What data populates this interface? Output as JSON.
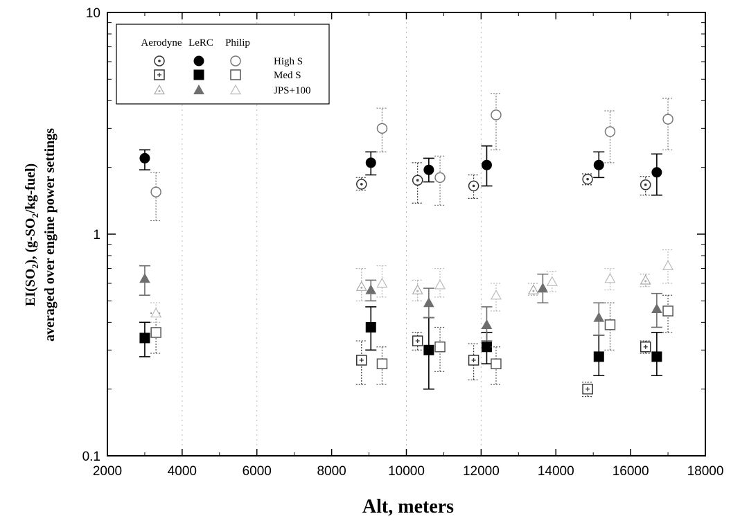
{
  "chart_data": {
    "type": "scatter",
    "title": "",
    "xlabel": "Alt, meters",
    "ylabel_line1": "EI(SO",
    "ylabel_sub": "2",
    "ylabel_mid": "), (g-SO",
    "ylabel_sub2": "2",
    "ylabel_end": "/kg-fuel)",
    "ylabel_line2": "averaged over engine power settings",
    "xlim": [
      2000,
      18000
    ],
    "ylim": [
      0.1,
      10
    ],
    "yscale": "log",
    "x_ticks": [
      "2000",
      "4000",
      "6000",
      "8000",
      "10000",
      "12000",
      "14000",
      "16000",
      "18000"
    ],
    "y_ticks": [
      "0.1",
      "1",
      "10"
    ],
    "legend": {
      "position": "top-left",
      "columns": [
        "Aerodyne",
        "LeRC",
        "Philip"
      ],
      "rows": [
        "High S",
        "Med S",
        "JPS+100"
      ]
    },
    "series": [
      {
        "group": "Aerodyne",
        "fuel": "High S",
        "marker": "circle-dot",
        "color": "#333333",
        "points": [
          [
            8800,
            1.68,
            1.58,
            1.8
          ],
          [
            10300,
            1.75,
            1.38,
            2.1
          ],
          [
            11800,
            1.65,
            1.45,
            1.85
          ],
          [
            14850,
            1.77,
            1.67,
            1.87
          ],
          [
            16400,
            1.67,
            1.5,
            1.82
          ]
        ]
      },
      {
        "group": "LeRC",
        "fuel": "High S",
        "marker": "circle-filled",
        "color": "#000000",
        "points": [
          [
            3000,
            2.2,
            1.95,
            2.4
          ],
          [
            9050,
            2.1,
            1.85,
            2.35
          ],
          [
            10600,
            1.95,
            1.72,
            2.2
          ],
          [
            12150,
            2.05,
            1.65,
            2.5
          ],
          [
            15150,
            2.05,
            1.8,
            2.35
          ],
          [
            16700,
            1.9,
            1.5,
            2.3
          ]
        ]
      },
      {
        "group": "Philip",
        "fuel": "High S",
        "marker": "circle-open",
        "color": "#777777",
        "points": [
          [
            3300,
            1.55,
            1.15,
            1.9
          ],
          [
            9350,
            3.0,
            2.35,
            3.7
          ],
          [
            10900,
            1.8,
            1.35,
            2.25
          ],
          [
            12400,
            3.45,
            2.4,
            4.3
          ],
          [
            15450,
            2.9,
            2.1,
            3.6
          ],
          [
            17000,
            3.3,
            2.4,
            4.1
          ]
        ]
      },
      {
        "group": "Aerodyne",
        "fuel": "Med S",
        "marker": "square-plus",
        "color": "#333333",
        "points": [
          [
            8800,
            0.27,
            0.21,
            0.33
          ],
          [
            10300,
            0.33,
            0.3,
            0.36
          ],
          [
            11800,
            0.27,
            0.22,
            0.32
          ],
          [
            14850,
            0.2,
            0.185,
            0.215
          ],
          [
            16400,
            0.31,
            0.29,
            0.33
          ]
        ]
      },
      {
        "group": "LeRC",
        "fuel": "Med S",
        "marker": "square-filled",
        "color": "#000000",
        "points": [
          [
            3000,
            0.34,
            0.28,
            0.4
          ],
          [
            9050,
            0.38,
            0.3,
            0.47
          ],
          [
            10600,
            0.3,
            0.2,
            0.42
          ],
          [
            12150,
            0.31,
            0.26,
            0.36
          ],
          [
            15150,
            0.28,
            0.23,
            0.35
          ],
          [
            16700,
            0.28,
            0.23,
            0.36
          ]
        ]
      },
      {
        "group": "Philip",
        "fuel": "Med S",
        "marker": "square-open",
        "color": "#555555",
        "points": [
          [
            3300,
            0.36,
            0.29,
            0.44
          ],
          [
            9350,
            0.26,
            0.21,
            0.31
          ],
          [
            10900,
            0.31,
            0.24,
            0.38
          ],
          [
            12400,
            0.26,
            0.21,
            0.31
          ],
          [
            15450,
            0.39,
            0.3,
            0.49
          ],
          [
            17000,
            0.45,
            0.36,
            0.53
          ]
        ]
      },
      {
        "group": "Aerodyne",
        "fuel": "JPS+100",
        "marker": "triangle-dot",
        "color": "#aaaaaa",
        "points": [
          [
            8800,
            0.58,
            0.5,
            0.7
          ],
          [
            10300,
            0.56,
            0.5,
            0.62
          ],
          [
            13400,
            0.56,
            0.53,
            0.6
          ],
          [
            16400,
            0.62,
            0.58,
            0.66
          ]
        ]
      },
      {
        "group": "LeRC",
        "fuel": "JPS+100",
        "marker": "triangle-filled",
        "color": "#6e6e6e",
        "points": [
          [
            3000,
            0.63,
            0.53,
            0.72
          ],
          [
            9050,
            0.56,
            0.5,
            0.62
          ],
          [
            10600,
            0.49,
            0.42,
            0.57
          ],
          [
            12150,
            0.39,
            0.33,
            0.47
          ],
          [
            13650,
            0.57,
            0.49,
            0.66
          ],
          [
            15150,
            0.42,
            0.35,
            0.49
          ],
          [
            16700,
            0.46,
            0.38,
            0.54
          ]
        ]
      },
      {
        "group": "Philip",
        "fuel": "JPS+100",
        "marker": "triangle-open",
        "color": "#bbbbbb",
        "points": [
          [
            3300,
            0.44,
            0.4,
            0.49
          ],
          [
            9350,
            0.6,
            0.52,
            0.72
          ],
          [
            10900,
            0.59,
            0.52,
            0.7
          ],
          [
            12400,
            0.53,
            0.45,
            0.6
          ],
          [
            13900,
            0.61,
            0.55,
            0.68
          ],
          [
            15450,
            0.63,
            0.56,
            0.7
          ],
          [
            17000,
            0.72,
            0.6,
            0.85
          ]
        ]
      }
    ]
  }
}
